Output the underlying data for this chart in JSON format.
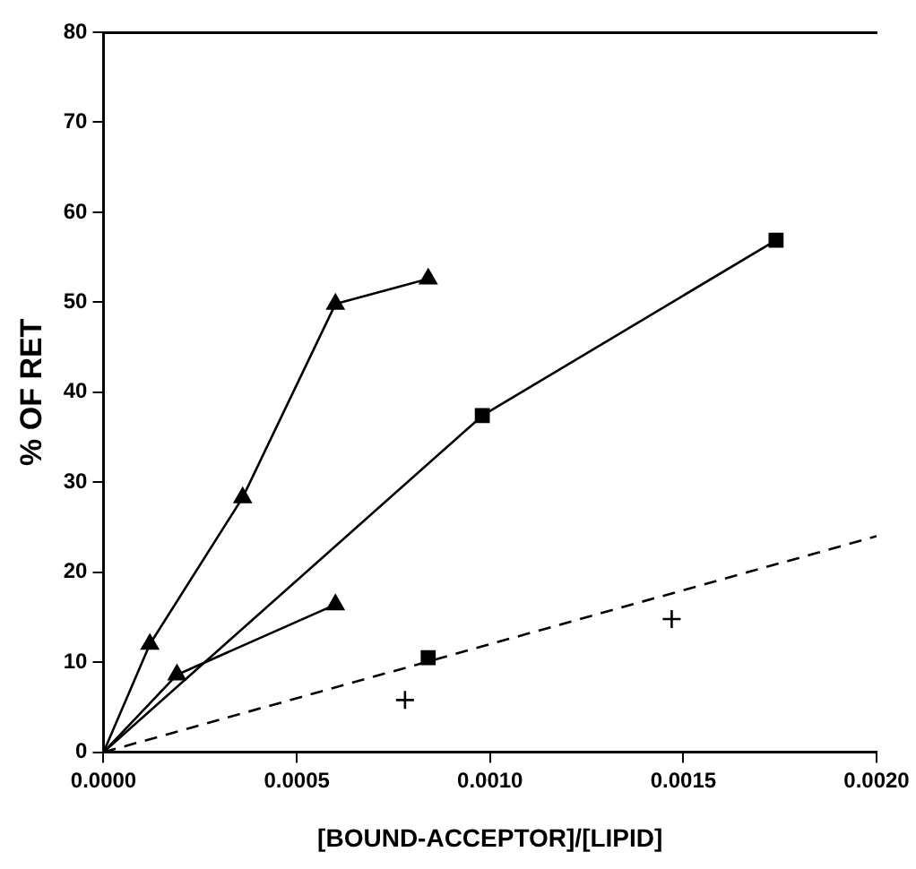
{
  "chart_data": {
    "type": "scatter",
    "xlabel": "[BOUND-ACCEPTOR]/[LIPID]",
    "ylabel": "% OF RET",
    "xlim": [
      0,
      0.002
    ],
    "xticks": [
      {
        "value": 0,
        "label": "0.0000"
      },
      {
        "value": 0.0005,
        "label": "0.0005"
      },
      {
        "value": 0.001,
        "label": "0.0010"
      },
      {
        "value": 0.0015,
        "label": "0.0015"
      },
      {
        "value": 0.002,
        "label": "0.0020"
      }
    ],
    "ylim": [
      0,
      80
    ],
    "yticks": [
      0,
      10,
      20,
      30,
      40,
      50,
      60,
      70,
      80
    ],
    "grid": false,
    "legend": false,
    "series": [
      {
        "type": "line",
        "color": "#000000",
        "marker": "triangle",
        "x": [
          0,
          0.00012,
          0.00036,
          0.0006,
          0.00084
        ],
        "values": [
          0,
          12,
          28.3,
          49.8,
          52.6
        ]
      },
      {
        "type": "line",
        "color": "#000000",
        "marker": "square",
        "x": [
          0,
          0.00098,
          0.00174
        ],
        "values": [
          0,
          37.4,
          56.9
        ]
      },
      {
        "type": "line",
        "color": "#000000",
        "marker": "triangle",
        "x": [
          0,
          0.00019,
          0.0006
        ],
        "values": [
          0,
          8.6,
          16.4
        ]
      },
      {
        "type": "scatter",
        "color": "#000000",
        "marker": "square",
        "x": [
          0.00084
        ],
        "values": [
          10.5
        ]
      },
      {
        "type": "scatter",
        "color": "#000000",
        "marker": "cross",
        "x": [
          0.00078,
          0.00147
        ],
        "values": [
          5.8,
          14.8
        ]
      },
      {
        "type": "line",
        "color": "#000000",
        "marker": "none",
        "line_style": "dashed",
        "x": [
          0,
          0.002
        ],
        "values": [
          0,
          24
        ]
      }
    ]
  }
}
